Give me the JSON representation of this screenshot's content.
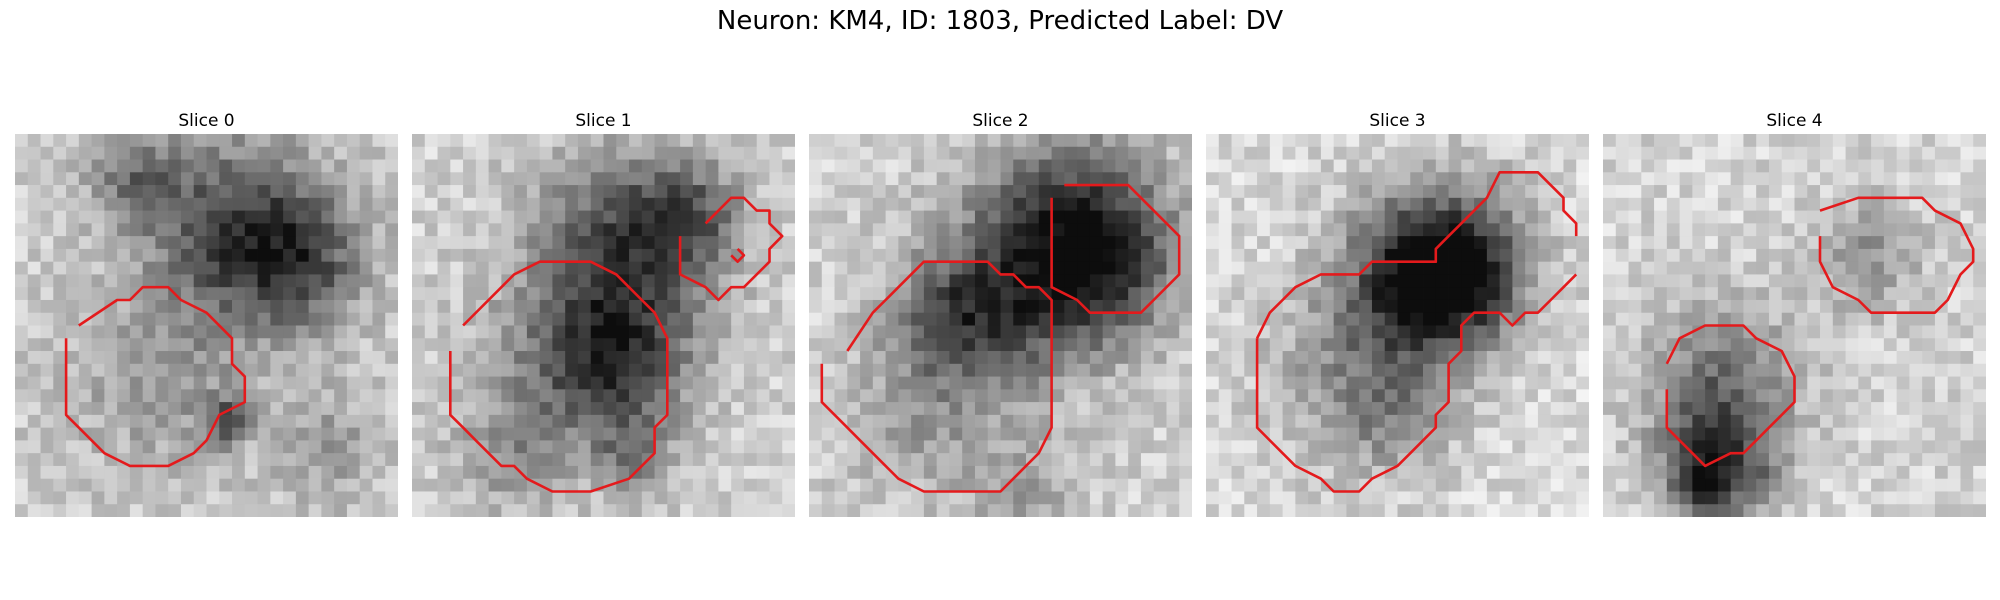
{
  "figure": {
    "title": "Neuron: KM4, ID: 1803, Predicted Label: DV",
    "contour_color": "#e41a1c",
    "colormap": "gray"
  },
  "panels": [
    {
      "title": "Slice 0"
    },
    {
      "title": "Slice 1"
    },
    {
      "title": "Slice 2"
    },
    {
      "title": "Slice 3"
    },
    {
      "title": "Slice 4"
    }
  ]
}
